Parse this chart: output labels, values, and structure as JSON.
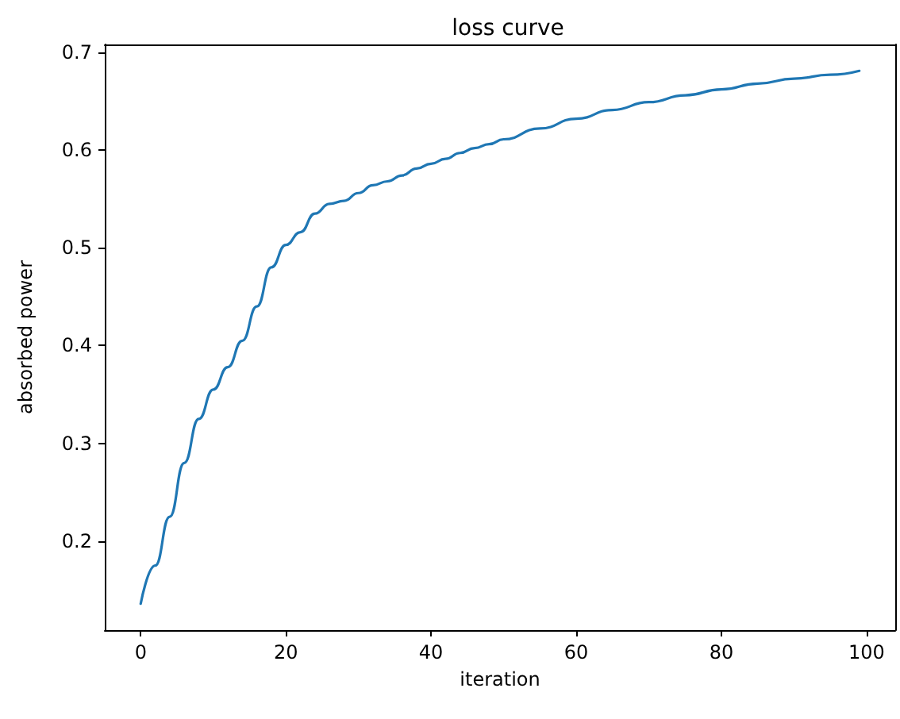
{
  "chart_data": {
    "type": "line",
    "title": "loss curve",
    "xlabel": "iteration",
    "ylabel": "absorbed power",
    "x": [
      0,
      2,
      4,
      6,
      8,
      10,
      12,
      14,
      16,
      18,
      20,
      22,
      24,
      26,
      28,
      30,
      32,
      34,
      36,
      38,
      40,
      42,
      44,
      46,
      48,
      50,
      55,
      60,
      65,
      70,
      75,
      80,
      85,
      90,
      95,
      99
    ],
    "series": [
      {
        "color": "#1f77b4",
        "values": [
          0.136,
          0.175,
          0.225,
          0.28,
          0.325,
          0.355,
          0.378,
          0.405,
          0.44,
          0.48,
          0.503,
          0.516,
          0.535,
          0.545,
          0.548,
          0.556,
          0.564,
          0.568,
          0.574,
          0.581,
          0.586,
          0.591,
          0.597,
          0.602,
          0.606,
          0.611,
          0.622,
          0.632,
          0.641,
          0.649,
          0.656,
          0.662,
          0.668,
          0.673,
          0.677,
          0.681
        ]
      }
    ],
    "xlim": [
      -4.95,
      103.95
    ],
    "ylim": [
      0.109,
      0.708
    ],
    "xticks": [
      0,
      20,
      40,
      60,
      80,
      100
    ],
    "yticks": [
      0.2,
      0.3,
      0.4,
      0.5,
      0.6,
      0.7
    ],
    "grid": false,
    "marker": "none",
    "line_style": "solid"
  }
}
